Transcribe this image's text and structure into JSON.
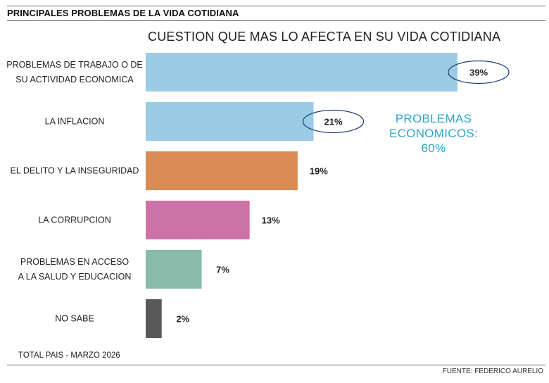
{
  "header": {
    "title": "PRINCIPALES PROBLEMAS DE LA VIDA COTIDIANA"
  },
  "annotation": {
    "lines": [
      "PROBLEMAS",
      "ECONOMICOS:",
      "60%"
    ],
    "color": "#2ba6c9"
  },
  "footer": {
    "note": "TOTAL PAIS - MARZO 2026",
    "source": "FUENTE: FEDERICO AURELIO"
  },
  "chart_data": {
    "type": "bar",
    "orientation": "horizontal",
    "title": "CUESTION QUE MAS LO AFECTA EN SU VIDA COTIDIANA",
    "categories": [
      [
        "PROBLEMAS DE TRABAJO O DE",
        "SU ACTIVIDAD ECONOMICA"
      ],
      [
        "LA INFLACION"
      ],
      [
        "EL DELITO Y LA INSEGURIDAD"
      ],
      [
        "LA CORRUPCION"
      ],
      [
        "PROBLEMAS EN ACCESO",
        "A LA SALUD Y EDUCACION"
      ],
      [
        "NO SABE"
      ]
    ],
    "values": [
      39,
      21,
      19,
      13,
      7,
      2
    ],
    "value_labels": [
      "39%",
      "21%",
      "19%",
      "13%",
      "7%",
      "2%"
    ],
    "colors": [
      "#9ccbe6",
      "#9ccbe6",
      "#d98c54",
      "#cc72a6",
      "#86bca9",
      "#595959"
    ],
    "highlighted": [
      true,
      true,
      false,
      false,
      false,
      false
    ],
    "highlight_color": "#1e3f78",
    "xlim": [
      0,
      39
    ],
    "grid": false,
    "legend": "none"
  }
}
